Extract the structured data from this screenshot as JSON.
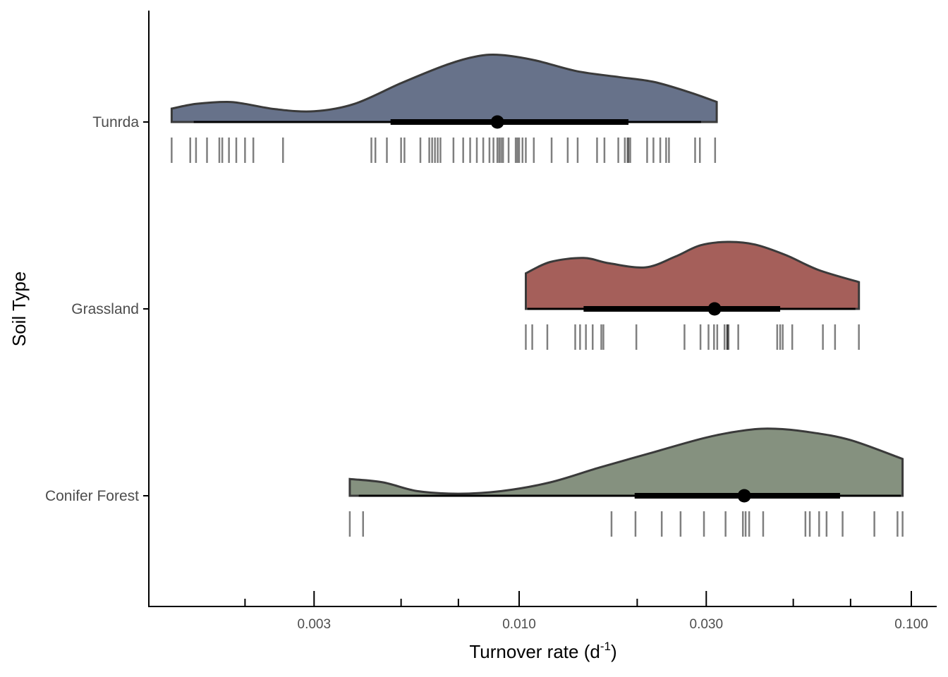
{
  "chart_data": {
    "type": "raincloud",
    "xlabel": "Turnover rate (d",
    "xlabel_superscript": "-1",
    "xlabel_suffix": ")",
    "ylabel": "Soil Type",
    "x_scale": "log10",
    "xlim": [
      0.00105,
      0.107
    ],
    "x_ticks": [
      {
        "value": 0.003,
        "label": "0.003"
      },
      {
        "value": 0.01,
        "label": "0.010"
      },
      {
        "value": 0.03,
        "label": "0.030"
      },
      {
        "value": 0.1,
        "label": "0.100"
      }
    ],
    "x_minor_ticks": [
      0.002,
      0.005,
      0.007,
      0.02,
      0.05,
      0.07
    ],
    "grid": false,
    "legend": "none",
    "categories": [
      "Tunrda",
      "Grassland",
      "Conifer Forest"
    ],
    "series": [
      {
        "name": "Tunrda",
        "color": "#67728a",
        "median": 0.0088,
        "interval_66": [
          0.0047,
          0.019
        ],
        "interval_95": [
          0.00148,
          0.0291
        ],
        "density": {
          "x": [
            0.0013,
            0.0015,
            0.0018,
            0.002,
            0.0024,
            0.003,
            0.0038,
            0.005,
            0.0065,
            0.0078,
            0.009,
            0.011,
            0.014,
            0.018,
            0.022,
            0.027,
            0.0319
          ],
          "y": [
            0.2,
            0.27,
            0.3,
            0.27,
            0.19,
            0.16,
            0.27,
            0.58,
            0.85,
            0.98,
            1.0,
            0.92,
            0.76,
            0.67,
            0.6,
            0.45,
            0.3
          ]
        },
        "observations": [
          0.0013,
          0.00145,
          0.0015,
          0.0016,
          0.00172,
          0.00175,
          0.00182,
          0.0019,
          0.002,
          0.0021,
          0.0025,
          0.0042,
          0.0043,
          0.0046,
          0.005,
          0.0051,
          0.0056,
          0.0059,
          0.006,
          0.0061,
          0.0062,
          0.0063,
          0.0068,
          0.0072,
          0.0075,
          0.0078,
          0.0081,
          0.0084,
          0.0086,
          0.0088,
          0.0089,
          0.009,
          0.0091,
          0.0094,
          0.0098,
          0.0099,
          0.01,
          0.0102,
          0.0104,
          0.0109,
          0.0121,
          0.0133,
          0.0141,
          0.0158,
          0.0165,
          0.0179,
          0.0186,
          0.0189,
          0.019,
          0.0192,
          0.0212,
          0.022,
          0.0229,
          0.0237,
          0.0241,
          0.0281,
          0.0289,
          0.0316
        ]
      },
      {
        "name": "Grassland",
        "color": "#a55f5a",
        "median": 0.0315,
        "interval_66": [
          0.0146,
          0.0463
        ],
        "interval_95": [
          0.0105,
          0.072
        ],
        "density": {
          "x": [
            0.0104,
            0.012,
            0.0146,
            0.017,
            0.021,
            0.025,
            0.029,
            0.034,
            0.04,
            0.048,
            0.058,
            0.0735
          ],
          "y": [
            0.53,
            0.7,
            0.76,
            0.68,
            0.62,
            0.78,
            0.95,
            1.0,
            0.96,
            0.8,
            0.58,
            0.4
          ]
        },
        "observations": [
          0.0104,
          0.0108,
          0.0118,
          0.0139,
          0.0143,
          0.0148,
          0.0154,
          0.0162,
          0.0164,
          0.0199,
          0.0264,
          0.029,
          0.0304,
          0.0314,
          0.032,
          0.0334,
          0.0339,
          0.034,
          0.0342,
          0.0362,
          0.0455,
          0.0463,
          0.047,
          0.0497,
          0.0595,
          0.0639,
          0.0735
        ]
      },
      {
        "name": "Conifer Forest",
        "color": "#85917f",
        "median": 0.0375,
        "interval_66": [
          0.0197,
          0.0658
        ],
        "interval_95": [
          0.0039,
          0.094
        ],
        "density": {
          "x": [
            0.0037,
            0.0045,
            0.0055,
            0.007,
            0.009,
            0.012,
            0.016,
            0.022,
            0.03,
            0.038,
            0.045,
            0.055,
            0.07,
            0.095
          ],
          "y": [
            0.25,
            0.2,
            0.07,
            0.03,
            0.07,
            0.2,
            0.42,
            0.65,
            0.87,
            0.98,
            1.0,
            0.95,
            0.83,
            0.55
          ]
        },
        "observations": [
          0.0037,
          0.004,
          0.0172,
          0.0198,
          0.0231,
          0.0258,
          0.0296,
          0.0336,
          0.0372,
          0.0378,
          0.0386,
          0.0419,
          0.0537,
          0.0551,
          0.0582,
          0.0608,
          0.0668,
          0.0805,
          0.0922,
          0.095
        ]
      }
    ]
  }
}
